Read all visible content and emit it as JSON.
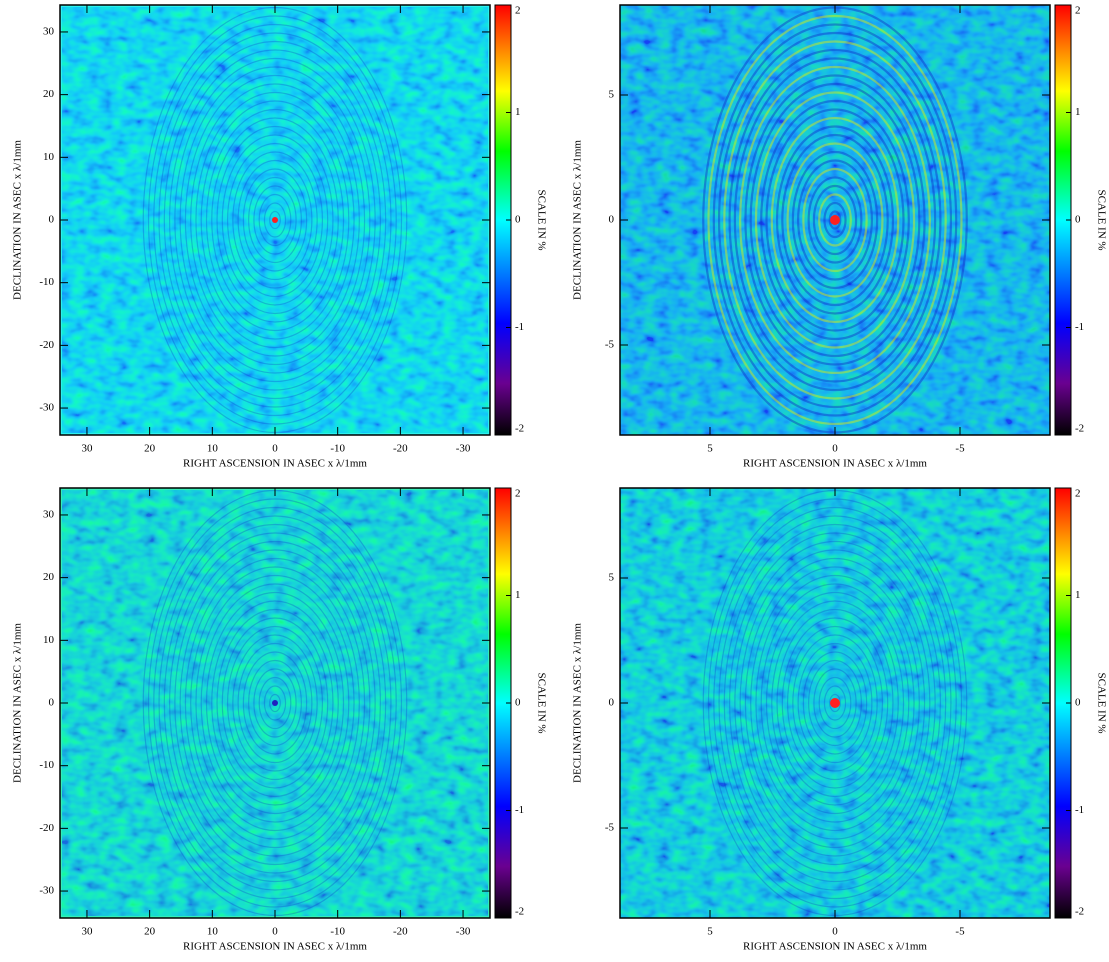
{
  "chart_data": [
    {
      "type": "image",
      "color": "#2cf0ee",
      "xlabel": "RIGHT ASCENSION IN ASEC x λ/1mm",
      "ylabel": "DECLINATION IN ASEC x λ/1mm",
      "xlim": [
        34.3,
        -34.3
      ],
      "ylim": [
        -34.3,
        34.3
      ],
      "xticks": [
        30,
        20,
        10,
        0,
        -10,
        -20,
        -30
      ],
      "yticks": [
        -30,
        -20,
        -10,
        0,
        10,
        20,
        30
      ],
      "colorbar": {
        "label": "SCALE IN %",
        "lim": [
          -2,
          2
        ],
        "ticks": [
          -2,
          -1,
          0,
          1,
          2
        ]
      }
    },
    {
      "type": "image",
      "color": "#3aa8e8",
      "xlabel": "RIGHT ASCENSION IN ASEC x λ/1mm",
      "ylabel": "DECLINATION IN ASEC x λ/1mm",
      "xlim": [
        8.6,
        -8.6
      ],
      "ylim": [
        -8.6,
        8.6
      ],
      "xticks": [
        5,
        0,
        -5
      ],
      "yticks": [
        -5,
        0,
        5
      ],
      "colorbar": {
        "label": "SCALE IN %",
        "lim": [
          -2,
          2
        ],
        "ticks": [
          -2,
          -1,
          0,
          1,
          2
        ]
      }
    },
    {
      "type": "image",
      "color": "#34eeb8",
      "xlabel": "RIGHT ASCENSION IN ASEC x λ/1mm",
      "ylabel": "DECLINATION IN ASEC x λ/1mm",
      "xlim": [
        34.3,
        -34.3
      ],
      "ylim": [
        -34.3,
        34.3
      ],
      "xticks": [
        30,
        20,
        10,
        0,
        -10,
        -20,
        -30
      ],
      "yticks": [
        -30,
        -20,
        -10,
        0,
        10,
        20,
        30
      ],
      "colorbar": {
        "label": "SCALE IN %",
        "lim": [
          -2,
          2
        ],
        "ticks": [
          -2,
          -1,
          0,
          1,
          2
        ]
      }
    },
    {
      "type": "image",
      "color": "#36dcc6",
      "xlabel": "RIGHT ASCENSION IN ASEC x λ/1mm",
      "ylabel": "DECLINATION IN ASEC x λ/1mm",
      "xlim": [
        8.6,
        -8.6
      ],
      "ylim": [
        -8.6,
        8.6
      ],
      "xticks": [
        5,
        0,
        -5
      ],
      "yticks": [
        -5,
        0,
        5
      ],
      "colorbar": {
        "label": "SCALE IN %",
        "lim": [
          -2,
          2
        ],
        "ticks": [
          -2,
          -1,
          0,
          1,
          2
        ]
      }
    }
  ]
}
